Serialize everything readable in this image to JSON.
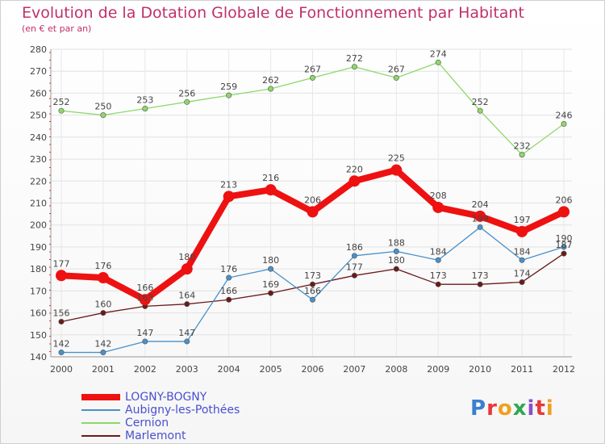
{
  "header": {
    "title": "Evolution de la Dotation Globale de Fonctionnement par Habitant",
    "subtitle": "(en € et par an)"
  },
  "logo": {
    "text": "Proxiti",
    "letter_colors": [
      "#3a7fd0",
      "#e8383a",
      "#f0a020",
      "#2fa84f",
      "#8a4fc8",
      "#e8383a",
      "#f0a020"
    ]
  },
  "chart_data": {
    "type": "line",
    "x": [
      "2000",
      "2001",
      "2002",
      "2003",
      "2004",
      "2005",
      "2006",
      "2007",
      "2008",
      "2009",
      "2010",
      "2011",
      "2012"
    ],
    "ylim": [
      140,
      280
    ],
    "yticks": [
      140,
      150,
      160,
      170,
      180,
      190,
      200,
      210,
      220,
      230,
      240,
      250,
      260,
      270,
      280
    ],
    "grid": true,
    "legend_position": "bottom-left",
    "series": [
      {
        "name": "LOGNY-BOGNY",
        "color": "#ee1111",
        "values": [
          177,
          176,
          166,
          180,
          213,
          216,
          206,
          220,
          225,
          208,
          204,
          197,
          206
        ],
        "labels": [
          "177",
          "176",
          "166",
          "180",
          "213",
          "216",
          "206",
          "220",
          "225",
          "208",
          "204",
          "197",
          "206"
        ]
      },
      {
        "name": "Aubigny-les-Pothées",
        "color": "#4a90c8",
        "values": [
          142,
          142,
          147,
          147,
          176,
          180,
          166,
          186,
          188,
          184,
          199,
          184,
          190
        ],
        "labels": [
          "142",
          "142",
          "147",
          "147",
          "176",
          "180",
          "166",
          "186",
          "188",
          "184",
          "199",
          "184",
          "190"
        ]
      },
      {
        "name": "Cernion",
        "color": "#8ed86a",
        "values": [
          252,
          250,
          253,
          256,
          259,
          262,
          267,
          272,
          267,
          274,
          252,
          232,
          246
        ],
        "labels": [
          "252",
          "250",
          "253",
          "256",
          "259",
          "262",
          "267",
          "272",
          "267",
          "274",
          "252",
          "232",
          "246"
        ]
      },
      {
        "name": "Marlemont",
        "color": "#6b1a1a",
        "values": [
          156,
          160,
          163,
          164,
          166,
          169,
          173,
          177,
          180,
          173,
          173,
          174,
          187
        ],
        "labels": [
          "156",
          "160",
          "163",
          "164",
          "166",
          "169",
          "173",
          "177",
          "180",
          "173",
          "173",
          "174",
          "187"
        ]
      }
    ]
  }
}
